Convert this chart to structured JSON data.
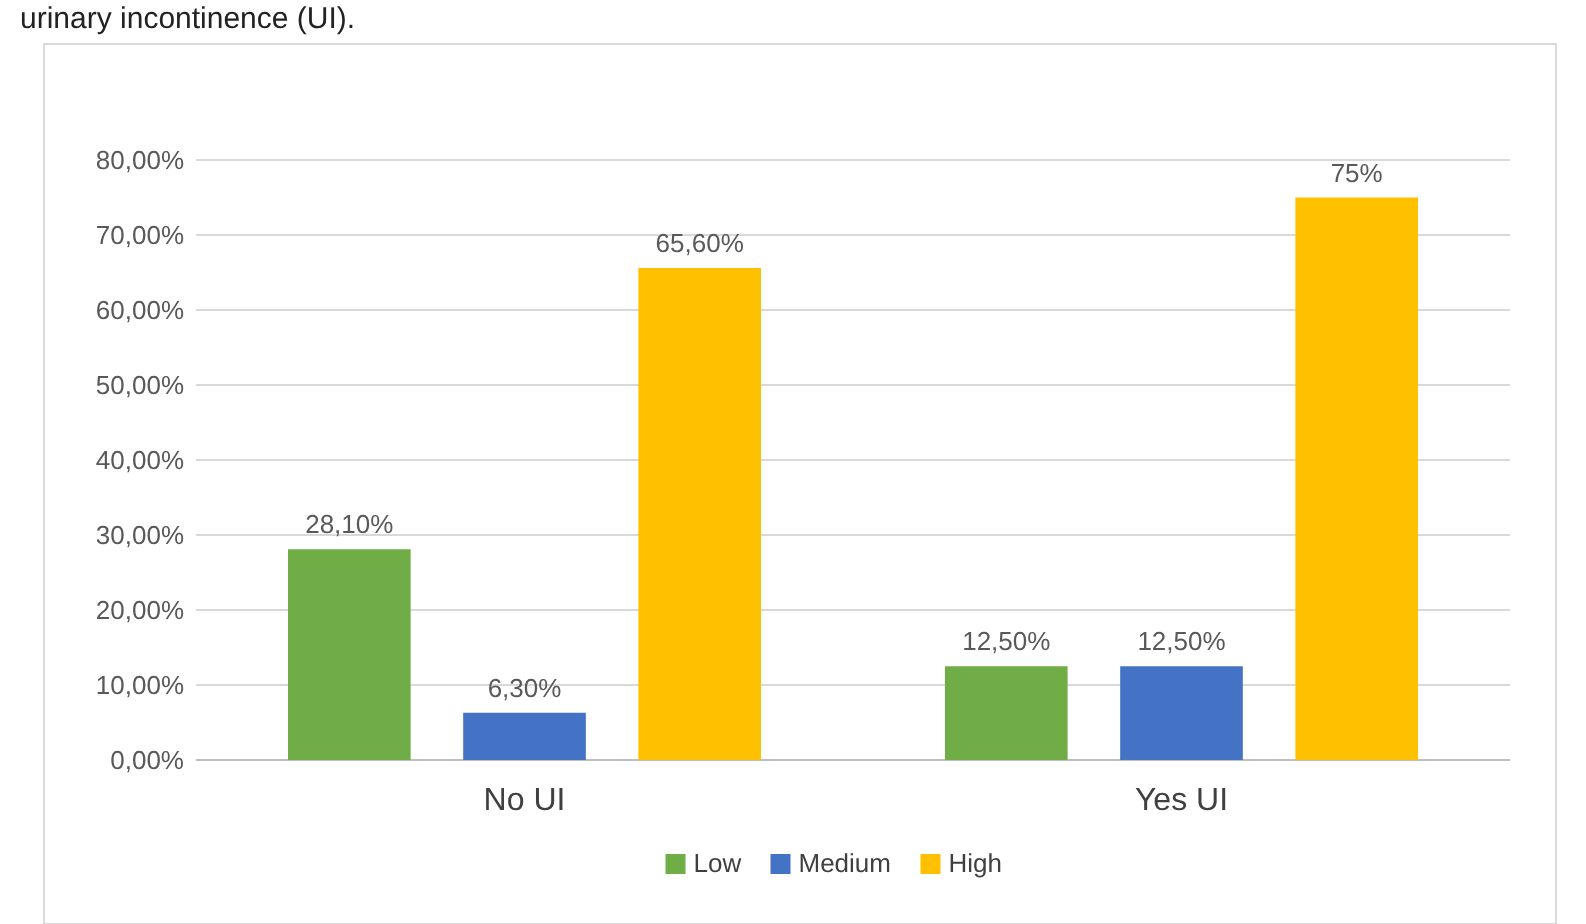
{
  "chart_data": {
    "type": "bar",
    "title": "urinary incontinence (UI).",
    "categories": [
      "No UI",
      "Yes UI"
    ],
    "series": [
      {
        "name": "Low",
        "color": "#70ad47",
        "values": [
          28.1,
          12.5
        ],
        "value_labels": [
          "28,10%",
          "12,50%"
        ]
      },
      {
        "name": "Medium",
        "color": "#4472c4",
        "values": [
          6.3,
          12.5
        ],
        "value_labels": [
          "6,30%",
          "12,50%"
        ]
      },
      {
        "name": "High",
        "color": "#ffc000",
        "values": [
          65.6,
          75
        ],
        "value_labels": [
          "65,60%",
          "75%"
        ]
      }
    ],
    "ylim": [
      0,
      80
    ],
    "yticks": [
      {
        "value": 0,
        "label": "0,00%"
      },
      {
        "value": 10,
        "label": "10,00%"
      },
      {
        "value": 20,
        "label": "20,00%"
      },
      {
        "value": 30,
        "label": "30,00%"
      },
      {
        "value": 40,
        "label": "40,00%"
      },
      {
        "value": 50,
        "label": "50,00%"
      },
      {
        "value": 60,
        "label": "60,00%"
      },
      {
        "value": 70,
        "label": "70,00%"
      },
      {
        "value": 80,
        "label": "80,00%"
      }
    ],
    "grid": "y",
    "legend": "bottom"
  }
}
